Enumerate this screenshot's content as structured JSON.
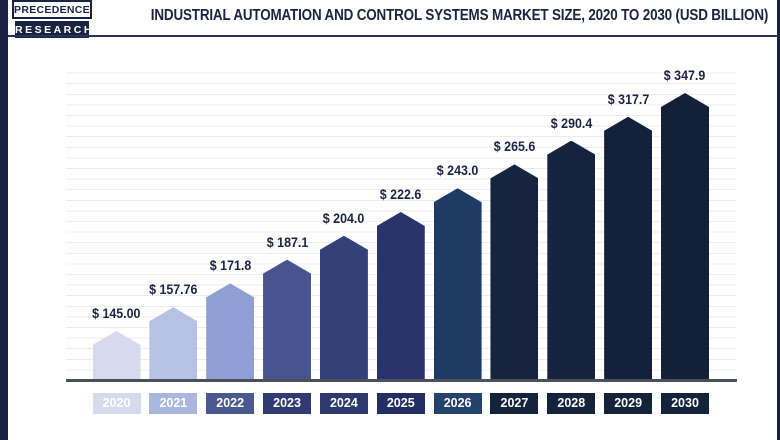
{
  "logo": {
    "line1": "PRECEDENCE",
    "line2": "RESEARCH"
  },
  "header": {
    "title": "INDUSTRIAL AUTOMATION AND CONTROL SYSTEMS MARKET SIZE, 2020 TO 2030 (USD BILLION)"
  },
  "chart_data": {
    "type": "bar",
    "title": "Industrial Automation and Control Systems Market Size, 2020 to 2030 (USD Billion)",
    "unit": "USD Billion",
    "categories": [
      "2020",
      "2021",
      "2022",
      "2023",
      "2024",
      "2025",
      "2026",
      "2027",
      "2028",
      "2029",
      "2030"
    ],
    "values": [
      145.0,
      157.76,
      171.8,
      187.1,
      204.0,
      222.6,
      243.0,
      265.6,
      290.4,
      317.7,
      347.9
    ],
    "value_labels": [
      "$ 145.00",
      "$ 157.76",
      "$ 171.8",
      "$ 187.1",
      "$ 204.0",
      "$ 222.6",
      "$ 243.0",
      "$ 265.6",
      "$ 290.4",
      "$ 317.7",
      "$ 347.9"
    ],
    "bar_colors": [
      "#d5daed",
      "#b7c1e3",
      "#8f9fd3",
      "#47548d",
      "#344078",
      "#2a336a",
      "#1e3b63",
      "#17253f",
      "#16233e",
      "#15213c",
      "#141f38"
    ],
    "tick_colors": [
      "#d5daed",
      "#a9b7de",
      "#49598f",
      "#2f3b72",
      "#2d396d",
      "#232f62",
      "#24426c",
      "#15223c",
      "#15223c",
      "#15223c",
      "#15223c"
    ],
    "grid": "horizontal-lines",
    "legend": "none"
  },
  "colors": {
    "accent_navy": "#1b2342",
    "value_text": "#1b2445",
    "axis_line": "#4a505c",
    "grid_line": "#ececec",
    "background": "#ffffff"
  }
}
